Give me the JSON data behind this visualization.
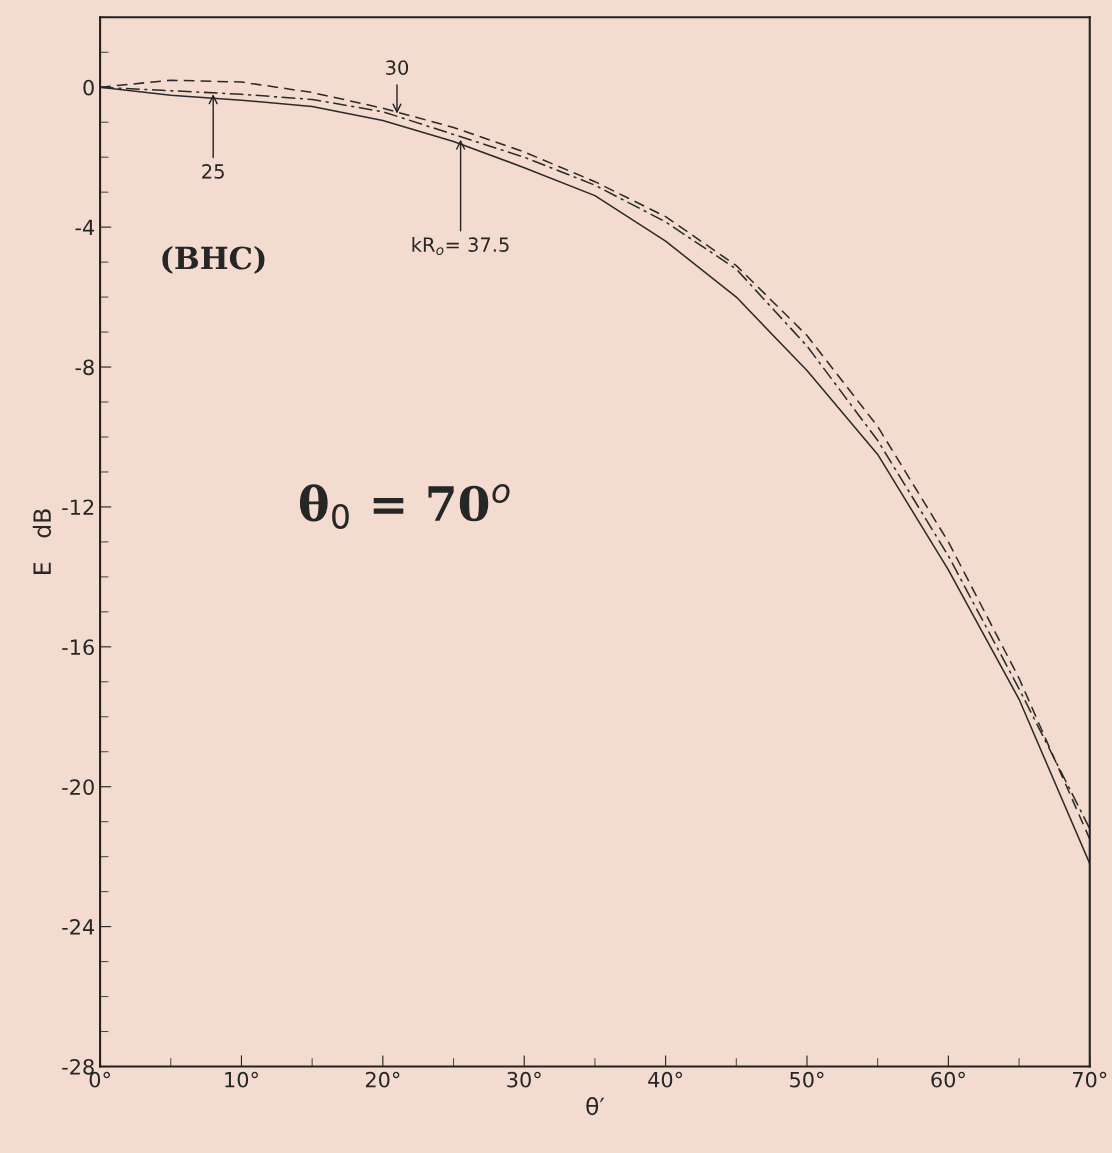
{
  "chart_data": {
    "type": "line",
    "xlabel": "θ′",
    "ylabel": "E   dB",
    "x": [
      0,
      5,
      10,
      15,
      20,
      25,
      30,
      35,
      40,
      45,
      50,
      55,
      60,
      65,
      70
    ],
    "series": [
      {
        "color": "#2a2a2a",
        "line_style": "solid",
        "values": [
          0,
          -0.23,
          -0.37,
          -0.55,
          -0.95,
          -1.55,
          -2.3,
          -3.1,
          -4.4,
          -6.0,
          -8.1,
          -10.5,
          -13.8,
          -17.5,
          -22.2
        ]
      },
      {
        "color": "#2a2a2a",
        "line_style": "dashed",
        "values": [
          0,
          0.2,
          0.15,
          -0.15,
          -0.6,
          -1.15,
          -1.85,
          -2.7,
          -3.7,
          -5.1,
          -7.1,
          -9.7,
          -13.0,
          -16.9,
          -21.5
        ]
      },
      {
        "color": "#2a2a2a",
        "line_style": "dashdot",
        "values": [
          0,
          -0.1,
          -0.2,
          -0.35,
          -0.7,
          -1.35,
          -2.0,
          -2.8,
          -3.85,
          -5.2,
          -7.4,
          -10.1,
          -13.4,
          -17.2,
          -21.2
        ]
      }
    ],
    "xlim": [
      0,
      70
    ],
    "ylim": [
      -28,
      2
    ],
    "xticks": [
      {
        "value": 0,
        "label": "0°"
      },
      {
        "value": 10,
        "label": "10°"
      },
      {
        "value": 20,
        "label": "20°"
      },
      {
        "value": 30,
        "label": "30°"
      },
      {
        "value": 40,
        "label": "40°"
      },
      {
        "value": 50,
        "label": "50°"
      },
      {
        "value": 60,
        "label": "60°"
      },
      {
        "value": 70,
        "label": "70°"
      }
    ],
    "yticks": [
      0,
      -4,
      -8,
      -12,
      -16,
      -20,
      -24,
      -28
    ],
    "annotations": [
      {
        "text": "25",
        "x": 8,
        "y": -0.2
      },
      {
        "text": "30",
        "x": 21,
        "y": -0.75
      },
      {
        "text": "kR$_{o}$= 37.5",
        "x": 25.5,
        "y": -1.5
      },
      "(BHC)",
      "θ$_{0}$ = 70$^{o}$"
    ],
    "grid": false,
    "legend": false
  }
}
